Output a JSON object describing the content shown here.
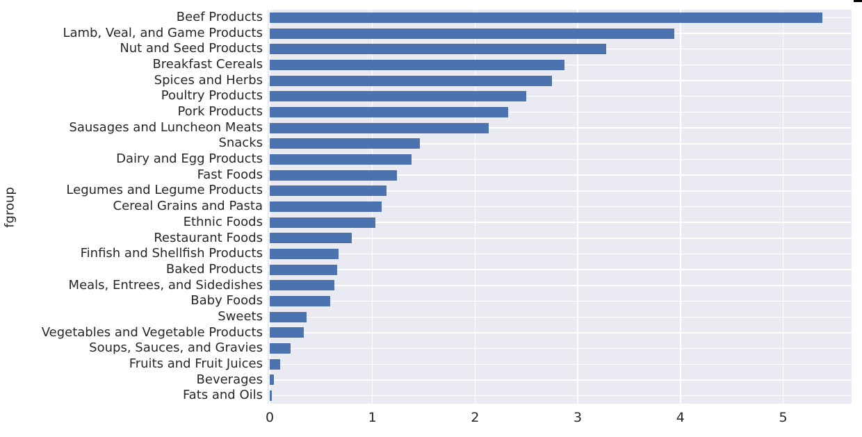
{
  "chart_data": {
    "type": "bar",
    "orientation": "horizontal",
    "title": "",
    "xlabel": "",
    "ylabel": "fgroup",
    "categories": [
      "Beef Products",
      "Lamb, Veal, and Game Products",
      "Nut and Seed Products",
      "Breakfast Cereals",
      "Spices and Herbs",
      "Poultry Products",
      "Pork Products",
      "Sausages and Luncheon Meats",
      "Snacks",
      "Dairy and Egg Products",
      "Fast Foods",
      "Legumes and Legume Products",
      "Cereal Grains and Pasta",
      "Ethnic Foods",
      "Restaurant Foods",
      "Finfish and Shellfish Products",
      "Baked Products",
      "Meals, Entrees, and Sidedishes",
      "Baby Foods",
      "Sweets",
      "Vegetables and Vegetable Products",
      "Soups, Sauces, and Gravies",
      "Fruits and Fruit Juices",
      "Beverages",
      "Fats and Oils"
    ],
    "values": [
      5.38,
      3.94,
      3.28,
      2.87,
      2.75,
      2.5,
      2.32,
      2.13,
      1.46,
      1.38,
      1.24,
      1.14,
      1.09,
      1.03,
      0.8,
      0.67,
      0.66,
      0.63,
      0.59,
      0.36,
      0.33,
      0.2,
      0.1,
      0.04,
      0.02
    ],
    "xticks": [
      0,
      1,
      2,
      3,
      4,
      5
    ],
    "xtick_labels": [
      "0",
      "1",
      "2",
      "3",
      "4",
      "5"
    ],
    "xlim": [
      0,
      5.67
    ],
    "grid": "on",
    "legend_position": "none",
    "colors": {
      "bar": "#4c72b0",
      "plot_background": "#eaeaf2",
      "grid": "#ffffff",
      "text": "#262626",
      "figure_background": "#ffffff"
    }
  }
}
